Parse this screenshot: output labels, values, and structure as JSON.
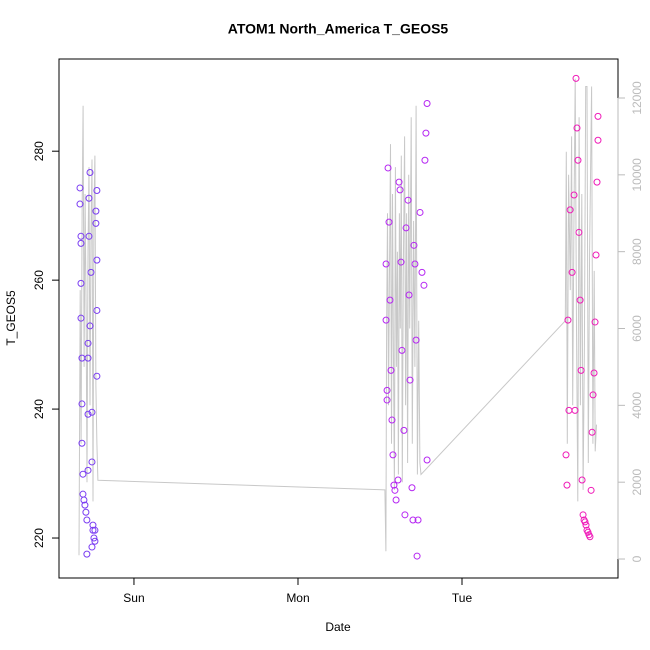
{
  "chart_data": {
    "type": "scatter",
    "title": "ATOM1 North_America T_GEOS5",
    "x_label": "Date",
    "y_label": "T_GEOS5",
    "xlim": [
      0.543,
      3.951
    ],
    "xticks": [
      {
        "value": 1,
        "label": "Sun"
      },
      {
        "value": 2,
        "label": "Mon"
      },
      {
        "value": 3,
        "label": "Tue"
      }
    ],
    "ylim": [
      213.8,
      294.3
    ],
    "yticks": [
      220,
      240,
      260,
      280
    ],
    "y2lim": [
      -494,
      13015
    ],
    "y2ticks": [
      0,
      2000,
      4000,
      6000,
      8000,
      10000,
      12000
    ],
    "series": [
      {
        "color": "#7a3cf2",
        "x": [
          0.671,
          0.671,
          0.677,
          0.677,
          0.677,
          0.677,
          0.683,
          0.683,
          0.683,
          0.689,
          0.689,
          0.695,
          0.701,
          0.707,
          0.713,
          0.713,
          0.72,
          0.72,
          0.72,
          0.72,
          0.726,
          0.726,
          0.732,
          0.732,
          0.738,
          0.744,
          0.744,
          0.744,
          0.75,
          0.75,
          0.756,
          0.762,
          0.762,
          0.768,
          0.768,
          0.774,
          0.774,
          0.774,
          0.774
        ],
        "values": [
          274.3,
          271.8,
          266.8,
          265.7,
          259.5,
          254.1,
          247.9,
          240.8,
          234.7,
          229.9,
          226.8,
          225.9,
          225.1,
          224.0,
          222.8,
          217.5,
          230.5,
          239.2,
          247.9,
          250.2,
          266.8,
          272.7,
          276.7,
          252.9,
          261.2,
          231.8,
          239.5,
          218.6,
          222.0,
          221.2,
          220.0,
          221.2,
          219.5,
          270.7,
          268.8,
          263.1,
          255.3,
          245.1,
          273.9
        ]
      },
      {
        "color": "#b526f2",
        "x": [
          2.537,
          2.537,
          2.543,
          2.543,
          2.549,
          2.555,
          2.561,
          2.567,
          2.573,
          2.579,
          2.585,
          2.591,
          2.598,
          2.61,
          2.616,
          2.622,
          2.628,
          2.634,
          2.646,
          2.652,
          2.659,
          2.671,
          2.677,
          2.683,
          2.695,
          2.701,
          2.707,
          2.713,
          2.72,
          2.726,
          2.732,
          2.744,
          2.756,
          2.768,
          2.774,
          2.78,
          2.787,
          2.787
        ],
        "values": [
          262.5,
          253.8,
          242.9,
          241.4,
          277.4,
          269.0,
          256.9,
          246.0,
          238.3,
          232.9,
          228.2,
          227.4,
          225.9,
          229.0,
          275.2,
          274.0,
          262.8,
          249.1,
          236.7,
          223.6,
          268.1,
          272.4,
          257.7,
          244.5,
          227.8,
          222.8,
          265.4,
          262.5,
          250.7,
          217.2,
          222.8,
          270.5,
          261.2,
          259.2,
          278.6,
          282.8,
          287.4,
          232.1
        ]
      },
      {
        "color": "#ef1ab8",
        "x": [
          3.634,
          3.64,
          3.646,
          3.652,
          3.659,
          3.671,
          3.683,
          3.689,
          3.695,
          3.701,
          3.707,
          3.713,
          3.72,
          3.726,
          3.732,
          3.738,
          3.744,
          3.75,
          3.756,
          3.762,
          3.768,
          3.774,
          3.78,
          3.787,
          3.793,
          3.799,
          3.805,
          3.811,
          3.817,
          3.823,
          3.829,
          3.829
        ],
        "values": [
          232.9,
          228.2,
          253.8,
          239.8,
          270.9,
          261.2,
          273.2,
          239.8,
          291.3,
          283.6,
          278.6,
          267.4,
          256.9,
          246.0,
          229.0,
          223.6,
          222.8,
          222.5,
          222.0,
          221.2,
          220.9,
          220.5,
          220.2,
          227.4,
          236.4,
          242.2,
          245.6,
          253.5,
          263.9,
          275.2,
          281.7,
          285.4
        ]
      },
      {
        "type": "line",
        "axis": "y2",
        "color": "#c8c8c8",
        "x": [
          0.665,
          0.672,
          0.678,
          0.684,
          0.69,
          0.696,
          0.702,
          0.708,
          0.714,
          0.72,
          0.726,
          0.732,
          0.738,
          0.744,
          0.75,
          0.756,
          0.762,
          0.768,
          0.774,
          0.78,
          2.53,
          2.536,
          2.54,
          2.546,
          2.552,
          2.558,
          2.564,
          2.57,
          2.576,
          2.582,
          2.588,
          2.594,
          2.6,
          2.606,
          2.612,
          2.618,
          2.624,
          2.63,
          2.636,
          2.642,
          2.65,
          2.656,
          2.662,
          2.668,
          2.675,
          2.681,
          2.69,
          2.697,
          2.705,
          2.713,
          2.72,
          2.728,
          2.736,
          2.743,
          2.75,
          3.63,
          3.636,
          3.642,
          3.65,
          3.66,
          3.668,
          3.675,
          3.683,
          3.69,
          3.698,
          3.706,
          3.714,
          3.722,
          3.73,
          3.738,
          3.746,
          3.754,
          3.762,
          3.77,
          3.778,
          3.79,
          3.798,
          3.806,
          3.812,
          3.82
        ],
        "values": [
          100,
          7000,
          3000,
          9000,
          11800,
          5000,
          9500,
          6500,
          2000,
          8000,
          10200,
          4000,
          8500,
          10400,
          1500,
          9000,
          10500,
          4500,
          3000,
          2050,
          1800,
          200,
          6000,
          9000,
          4000,
          7500,
          10800,
          3000,
          9500,
          5500,
          1800,
          10200,
          5000,
          8000,
          2200,
          9000,
          6000,
          10500,
          2000,
          7500,
          11000,
          4000,
          9000,
          2500,
          10000,
          6000,
          11500,
          3000,
          8800,
          5000,
          11800,
          2200,
          6200,
          2500,
          2200,
          6200,
          10600,
          3000,
          10000,
          7000,
          11000,
          4000,
          9000,
          12500,
          6000,
          1500,
          11500,
          4000,
          9500,
          1800,
          5500,
          12300,
          12300,
          2500,
          8000,
          12300,
          3000,
          7500,
          2800,
          3500
        ]
      }
    ]
  }
}
